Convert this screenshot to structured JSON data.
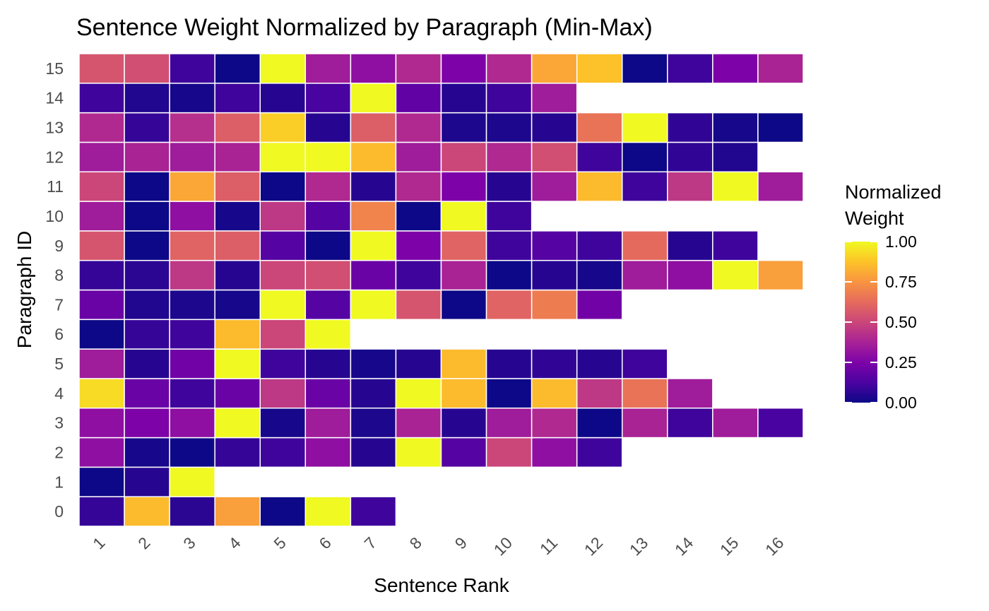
{
  "chart_data": {
    "type": "heatmap",
    "title": "Sentence Weight Normalized by Paragraph (Min-Max)",
    "xlabel": "Sentence Rank",
    "ylabel": "Paragraph ID",
    "x_categories": [
      "1",
      "2",
      "3",
      "4",
      "5",
      "6",
      "7",
      "8",
      "9",
      "10",
      "11",
      "12",
      "13",
      "14",
      "15",
      "16"
    ],
    "y_categories": [
      "0",
      "1",
      "2",
      "3",
      "4",
      "5",
      "6",
      "7",
      "8",
      "9",
      "10",
      "11",
      "12",
      "13",
      "14",
      "15"
    ],
    "colorscale": "plasma",
    "legend": {
      "title_line1": "Normalized",
      "title_line2": "Weight",
      "ticks": [
        "1.00",
        "0.75",
        "0.50",
        "0.25",
        "0.00"
      ],
      "tick_values": [
        1.0,
        0.75,
        0.5,
        0.25,
        0.0
      ],
      "position": "right"
    },
    "rows": [
      {
        "paragraph": "0",
        "values": [
          0.08,
          0.85,
          0.06,
          0.78,
          0.0,
          1.0,
          0.1
        ]
      },
      {
        "paragraph": "1",
        "values": [
          0.0,
          0.05,
          1.0
        ]
      },
      {
        "paragraph": "2",
        "values": [
          0.3,
          0.02,
          0.0,
          0.08,
          0.1,
          0.3,
          0.05,
          1.0,
          0.15,
          0.5,
          0.3,
          0.1
        ]
      },
      {
        "paragraph": "3",
        "values": [
          0.3,
          0.25,
          0.3,
          1.0,
          0.02,
          0.35,
          0.03,
          0.38,
          0.05,
          0.35,
          0.4,
          0.0,
          0.38,
          0.1,
          0.35,
          0.12
        ]
      },
      {
        "paragraph": "4",
        "values": [
          0.93,
          0.2,
          0.1,
          0.2,
          0.45,
          0.2,
          0.05,
          1.0,
          0.85,
          0.0,
          0.85,
          0.45,
          0.65,
          0.35
        ]
      },
      {
        "paragraph": "5",
        "values": [
          0.35,
          0.05,
          0.22,
          1.0,
          0.1,
          0.05,
          0.02,
          0.05,
          0.85,
          0.05,
          0.07,
          0.05,
          0.1
        ]
      },
      {
        "paragraph": "6",
        "values": [
          0.0,
          0.08,
          0.1,
          0.85,
          0.5,
          1.0
        ]
      },
      {
        "paragraph": "7",
        "values": [
          0.2,
          0.04,
          0.03,
          0.02,
          1.0,
          0.15,
          1.0,
          0.55,
          0.0,
          0.6,
          0.68,
          0.22
        ]
      },
      {
        "paragraph": "8",
        "values": [
          0.08,
          0.06,
          0.45,
          0.05,
          0.5,
          0.53,
          0.2,
          0.1,
          0.38,
          0.0,
          0.05,
          0.02,
          0.35,
          0.3,
          1.0,
          0.78
        ]
      },
      {
        "paragraph": "9",
        "values": [
          0.55,
          0.0,
          0.6,
          0.58,
          0.15,
          0.0,
          1.0,
          0.25,
          0.6,
          0.1,
          0.15,
          0.1,
          0.62,
          0.05,
          0.1
        ]
      },
      {
        "paragraph": "10",
        "values": [
          0.35,
          0.0,
          0.3,
          0.02,
          0.45,
          0.15,
          0.7,
          0.0,
          1.0,
          0.1
        ]
      },
      {
        "paragraph": "11",
        "values": [
          0.5,
          0.0,
          0.8,
          0.58,
          0.0,
          0.4,
          0.05,
          0.4,
          0.25,
          0.05,
          0.35,
          0.85,
          0.1,
          0.45,
          1.0,
          0.35
        ]
      },
      {
        "paragraph": "12",
        "values": [
          0.35,
          0.38,
          0.35,
          0.38,
          1.0,
          1.0,
          0.85,
          0.35,
          0.5,
          0.4,
          0.53,
          0.1,
          0.0,
          0.07,
          0.04
        ]
      },
      {
        "paragraph": "13",
        "values": [
          0.4,
          0.08,
          0.42,
          0.58,
          0.9,
          0.05,
          0.58,
          0.4,
          0.03,
          0.03,
          0.05,
          0.65,
          1.0,
          0.07,
          0.02,
          0.0
        ]
      },
      {
        "paragraph": "14",
        "values": [
          0.1,
          0.04,
          0.02,
          0.1,
          0.05,
          0.12,
          1.0,
          0.18,
          0.05,
          0.1,
          0.35
        ]
      },
      {
        "paragraph": "15",
        "values": [
          0.55,
          0.53,
          0.1,
          0.0,
          1.0,
          0.35,
          0.3,
          0.4,
          0.25,
          0.4,
          0.8,
          0.87,
          0.0,
          0.1,
          0.25,
          0.38
        ]
      }
    ]
  }
}
